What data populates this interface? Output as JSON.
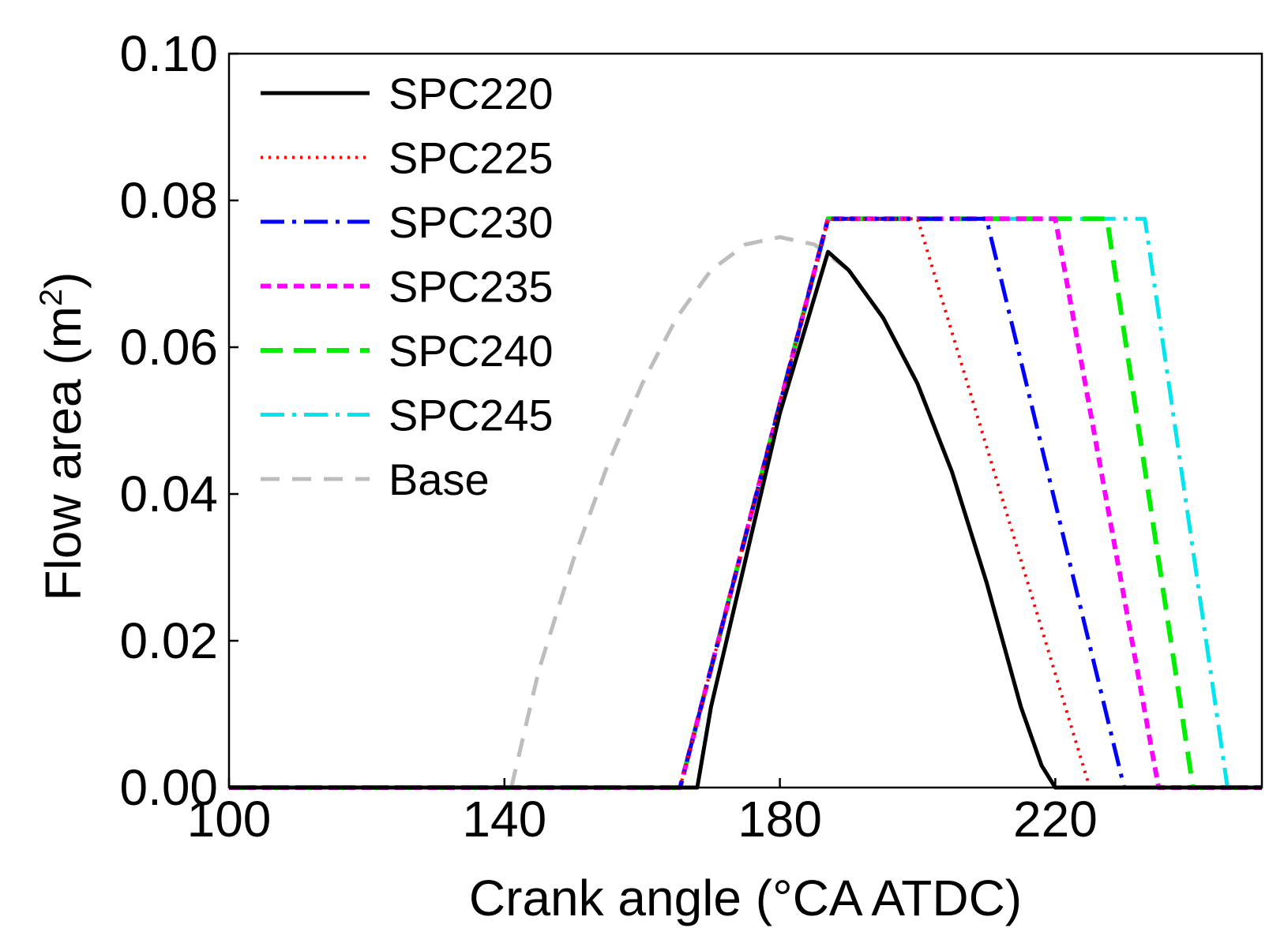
{
  "chart_data": {
    "type": "line",
    "title": "",
    "xlabel": "Crank angle (°CA ATDC)",
    "ylabel_text": "Flow area (m",
    "ylabel_sup": "2",
    "ylabel_close": ")",
    "xlim": [
      100,
      250
    ],
    "ylim": [
      0,
      0.1
    ],
    "x_ticks": [
      100,
      140,
      180,
      220
    ],
    "x_tick_labels": [
      "100",
      "140",
      "180",
      "220"
    ],
    "y_ticks": [
      0,
      0.02,
      0.04,
      0.06,
      0.08,
      0.1
    ],
    "y_tick_labels": [
      "0.00",
      "0.02",
      "0.04",
      "0.06",
      "0.08",
      "0.10"
    ],
    "legend_position": "top-left",
    "grid": false,
    "series": [
      {
        "name": "SPC220",
        "color": "#000000",
        "style": "solid",
        "x": [
          100,
          168,
          170,
          175,
          180,
          187,
          190,
          195,
          200,
          205,
          210,
          215,
          218,
          220,
          250
        ],
        "y": [
          0,
          0,
          0.011,
          0.031,
          0.051,
          0.073,
          0.0705,
          0.064,
          0.055,
          0.043,
          0.028,
          0.011,
          0.003,
          0,
          0
        ]
      },
      {
        "name": "SPC225",
        "color": "#ff0000",
        "style": "dotted",
        "x": [
          100,
          165.5,
          187,
          200,
          225,
          250
        ],
        "y": [
          0,
          0,
          0.0775,
          0.0775,
          0,
          0
        ]
      },
      {
        "name": "SPC230",
        "color": "#0000ff",
        "style": "dash-dot",
        "x": [
          100,
          165.5,
          187,
          210,
          230,
          250
        ],
        "y": [
          0,
          0,
          0.0775,
          0.0775,
          0,
          0
        ]
      },
      {
        "name": "SPC235",
        "color": "#ff00ff",
        "style": "short-dash",
        "x": [
          100,
          165.5,
          187,
          220,
          235,
          250
        ],
        "y": [
          0,
          0,
          0.0775,
          0.0775,
          0,
          0
        ]
      },
      {
        "name": "SPC240",
        "color": "#00ee00",
        "style": "dashed",
        "x": [
          100,
          165.5,
          187,
          227.5,
          240,
          250
        ],
        "y": [
          0,
          0,
          0.0775,
          0.0775,
          0,
          0
        ]
      },
      {
        "name": "SPC245",
        "color": "#00e5ee",
        "style": "dash-dot",
        "x": [
          100,
          165.5,
          187,
          233,
          245,
          250
        ],
        "y": [
          0,
          0,
          0.0775,
          0.0775,
          0,
          0
        ]
      },
      {
        "name": "Base",
        "color": "#bdbdbd",
        "style": "long-dash",
        "x": [
          141,
          145,
          150,
          155,
          160,
          165,
          170,
          175,
          180,
          185,
          190,
          195,
          200,
          205,
          210,
          215,
          218,
          220
        ],
        "y": [
          0,
          0.016,
          0.031,
          0.044,
          0.055,
          0.064,
          0.0705,
          0.074,
          0.075,
          0.074,
          0.0705,
          0.064,
          0.055,
          0.043,
          0.028,
          0.011,
          0.003,
          0
        ]
      }
    ]
  }
}
